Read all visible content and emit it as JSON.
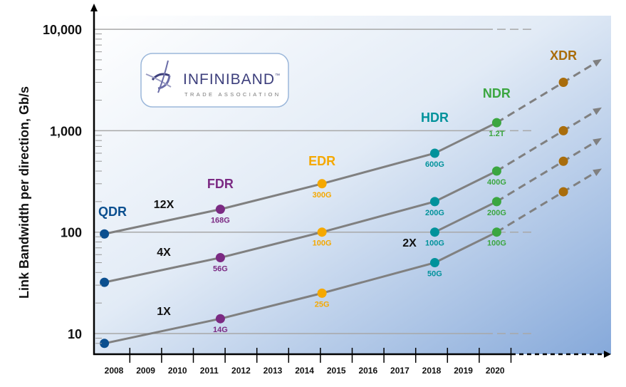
{
  "chart_data": {
    "type": "line",
    "ylabel": "Link Bandwidth per direction, Gb/s",
    "yscale": "log",
    "ylim": [
      6,
      14000
    ],
    "yticks": [
      {
        "v": 10,
        "label": "10"
      },
      {
        "v": 100,
        "label": "100"
      },
      {
        "v": 1000,
        "label": "1,000"
      },
      {
        "v": 10000,
        "label": "10,000"
      }
    ],
    "xticks": [
      "2008",
      "2009",
      "2010",
      "2011",
      "2012",
      "2013",
      "2014",
      "2015",
      "2016",
      "2017",
      "2018",
      "2019",
      "2020"
    ],
    "grid": true,
    "generations": [
      {
        "name": "QDR",
        "year": 2007.7,
        "color": "#0b4f8f",
        "values": {
          "1X": 8,
          "4X": 32,
          "12X": 96
        },
        "labels": {}
      },
      {
        "name": "FDR",
        "year": 2011.35,
        "color": "#7b2a83",
        "values": {
          "1X": 14,
          "4X": 56,
          "12X": 168
        },
        "labels": {
          "1X": "14G",
          "4X": "56G",
          "12X": "168G"
        }
      },
      {
        "name": "EDR",
        "year": 2014.55,
        "color": "#f5a800",
        "values": {
          "1X": 25,
          "4X": 100,
          "12X": 300
        },
        "labels": {
          "1X": "25G",
          "4X": "100G",
          "12X": "300G"
        }
      },
      {
        "name": "HDR",
        "year": 2018.1,
        "color": "#00929b",
        "values": {
          "1X": 50,
          "2X": 100,
          "4X": 200,
          "12X": 600
        },
        "labels": {
          "1X": "50G",
          "2X": "100G",
          "4X": "200G",
          "12X": "600G"
        }
      },
      {
        "name": "NDR",
        "year": 2020.05,
        "color": "#3ba640",
        "values": {
          "1X": 100,
          "2X": 200,
          "4X": 400,
          "12X": 1200
        },
        "labels": {
          "1X": "100G",
          "2X": "200G",
          "4X": "400G",
          "12X": "1.2T"
        }
      },
      {
        "name": "XDR",
        "year": 2022.15,
        "color": "#a96d0c",
        "values": {
          "1X": 250,
          "2X": 500,
          "4X": 1000,
          "12X": 3000
        },
        "labels": {}
      }
    ],
    "series": [
      {
        "name": "1X",
        "values": [
          8,
          14,
          25,
          50,
          100
        ]
      },
      {
        "name": "4X",
        "values": [
          32,
          56,
          100,
          200,
          400
        ]
      },
      {
        "name": "12X",
        "values": [
          96,
          168,
          300,
          600,
          1200
        ]
      },
      {
        "name": "2X",
        "values": [
          null,
          null,
          null,
          100,
          200
        ]
      }
    ],
    "projection": "dashed arrows beyond NDR"
  },
  "logo": {
    "name": "INFINIBAND",
    "tm": "™",
    "sub": "TRADE ASSOCIATION"
  }
}
